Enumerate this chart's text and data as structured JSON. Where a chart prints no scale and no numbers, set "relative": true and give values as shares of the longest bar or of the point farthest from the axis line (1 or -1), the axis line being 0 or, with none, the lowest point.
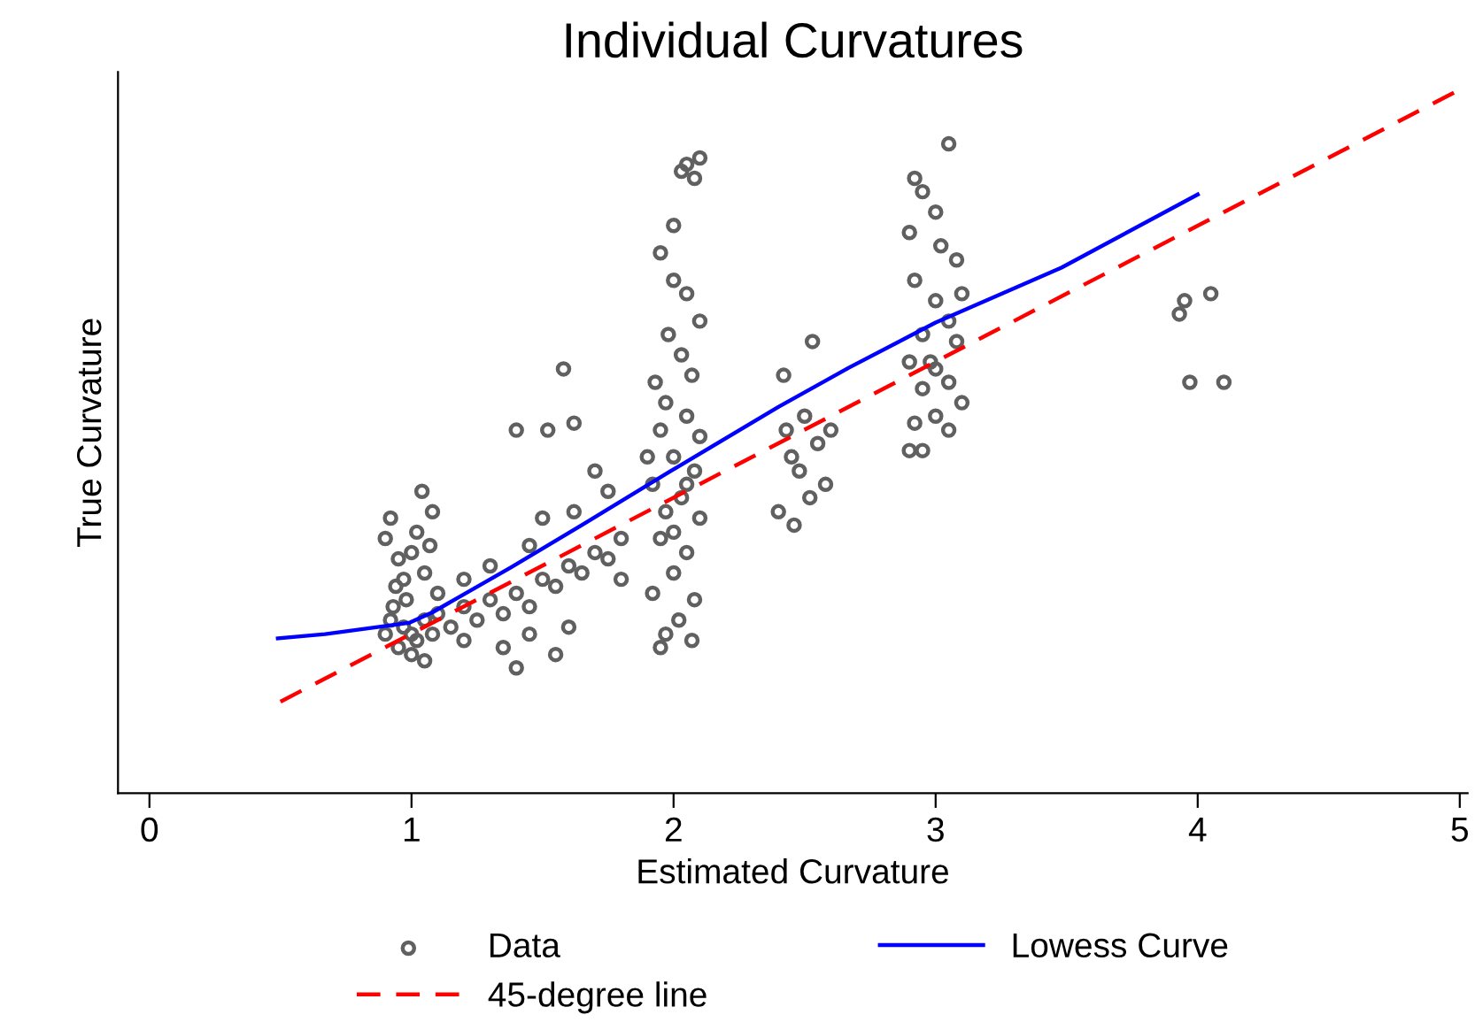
{
  "chart_data": {
    "type": "scatter",
    "title": "Individual Curvatures",
    "xlabel": "Estimated Curvature",
    "ylabel": "True Curvature",
    "xlim": [
      -0.12,
      5.03
    ],
    "xticks": [
      0,
      1,
      2,
      3,
      4,
      5
    ],
    "relative": true,
    "grid": false,
    "legend": "bottom",
    "series": [
      {
        "name": "Data",
        "marker": "circle",
        "color": "#606060",
        "x": [
          0.9,
          0.92,
          0.95,
          0.97,
          1.0,
          1.02,
          1.05,
          1.08,
          0.93,
          1.0,
          1.05,
          1.1,
          0.98,
          0.9,
          0.92,
          0.95,
          1.0,
          1.02,
          1.05,
          0.97,
          1.07,
          1.08,
          1.04,
          0.94,
          1.1,
          1.15,
          1.2,
          1.25,
          1.3,
          1.35,
          1.4,
          1.45,
          1.5,
          1.55,
          1.6,
          1.65,
          1.7,
          1.75,
          1.2,
          1.35,
          1.45,
          1.55,
          1.6,
          1.3,
          1.45,
          1.5,
          1.62,
          1.7,
          1.75,
          1.8,
          1.8,
          1.4,
          1.52,
          1.58,
          1.62,
          1.2,
          1.4,
          2.05,
          2.03,
          2.08,
          2.1,
          2.0,
          1.95,
          2.05,
          2.0,
          1.98,
          2.1,
          2.03,
          1.93,
          2.07,
          1.97,
          2.05,
          2.1,
          1.95,
          2.0,
          2.08,
          1.92,
          2.03,
          1.97,
          2.1,
          1.95,
          2.05,
          2.0,
          1.92,
          2.08,
          2.02,
          1.97,
          2.07,
          1.95,
          2.0,
          2.05,
          1.9,
          2.42,
          2.45,
          2.5,
          2.55,
          2.48,
          2.52,
          2.4,
          2.58,
          2.46,
          2.53,
          2.6,
          2.43,
          3.05,
          2.92,
          2.95,
          3.0,
          2.9,
          3.02,
          3.08,
          2.92,
          3.0,
          3.05,
          2.95,
          3.08,
          2.9,
          3.0,
          2.95,
          3.05,
          3.1,
          2.92,
          3.0,
          3.05,
          2.9,
          2.95,
          3.1,
          2.98,
          3.93,
          3.95,
          4.05,
          3.97,
          4.1
        ],
        "values": [
          0.226,
          0.246,
          0.207,
          0.236,
          0.226,
          0.217,
          0.246,
          0.226,
          0.265,
          0.197,
          0.188,
          0.255,
          0.275,
          0.362,
          0.391,
          0.333,
          0.342,
          0.371,
          0.313,
          0.304,
          0.352,
          0.4,
          0.429,
          0.294,
          0.284,
          0.236,
          0.265,
          0.246,
          0.275,
          0.255,
          0.284,
          0.265,
          0.304,
          0.294,
          0.323,
          0.313,
          0.342,
          0.333,
          0.217,
          0.207,
          0.226,
          0.197,
          0.236,
          0.323,
          0.352,
          0.391,
          0.4,
          0.458,
          0.429,
          0.362,
          0.304,
          0.516,
          0.516,
          0.603,
          0.526,
          0.304,
          0.178,
          0.894,
          0.884,
          0.874,
          0.903,
          0.807,
          0.768,
          0.71,
          0.729,
          0.652,
          0.671,
          0.623,
          0.584,
          0.594,
          0.555,
          0.536,
          0.507,
          0.516,
          0.478,
          0.458,
          0.439,
          0.42,
          0.4,
          0.391,
          0.362,
          0.342,
          0.313,
          0.284,
          0.275,
          0.246,
          0.226,
          0.217,
          0.207,
          0.371,
          0.439,
          0.478,
          0.594,
          0.478,
          0.536,
          0.497,
          0.458,
          0.42,
          0.4,
          0.439,
          0.381,
          0.642,
          0.516,
          0.516,
          0.923,
          0.874,
          0.855,
          0.826,
          0.797,
          0.778,
          0.758,
          0.729,
          0.7,
          0.671,
          0.652,
          0.642,
          0.613,
          0.603,
          0.575,
          0.584,
          0.555,
          0.526,
          0.536,
          0.516,
          0.487,
          0.487,
          0.71,
          0.613,
          0.681,
          0.7,
          0.71,
          0.584,
          0.584
        ]
      },
      {
        "name": "Lowess Curve",
        "type": "line",
        "line_style": "solid",
        "color": "#0000ff",
        "x": [
          0.49,
          0.67,
          0.99,
          1.08,
          1.38,
          1.65,
          1.99,
          2.4,
          2.67,
          3.0,
          3.48,
          4.0
        ],
        "values": [
          0.22,
          0.226,
          0.242,
          0.257,
          0.321,
          0.381,
          0.458,
          0.549,
          0.605,
          0.669,
          0.747,
          0.851
        ]
      },
      {
        "name": "45-degree line",
        "type": "line",
        "line_style": "dashed",
        "color": "#ff0000",
        "x": [
          0.5,
          5
        ],
        "values": [
          0.13,
          1
        ]
      }
    ]
  }
}
